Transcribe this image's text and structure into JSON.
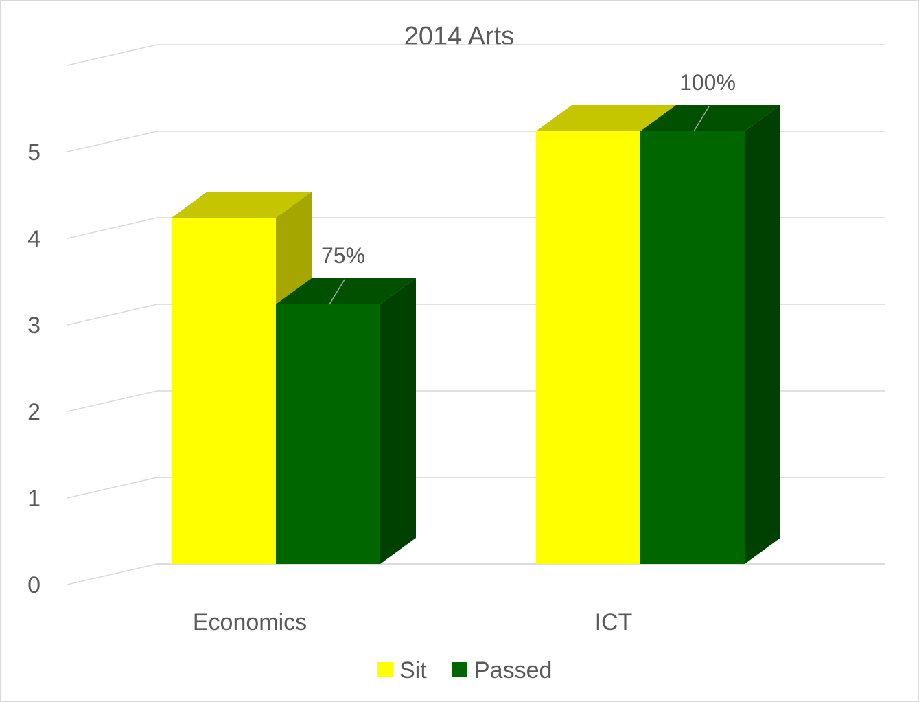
{
  "chart_data": {
    "type": "bar",
    "title": "2014 Arts",
    "categories": [
      "Economics",
      "ICT"
    ],
    "series": [
      {
        "name": "Sit",
        "values": [
          4,
          5
        ],
        "color": "#ffff00",
        "top_color": "#c6c600",
        "side_color": "#a6a600"
      },
      {
        "name": "Passed",
        "values": [
          3,
          5
        ],
        "color": "#006600",
        "top_color": "#005000",
        "side_color": "#004000",
        "labels": [
          "75%",
          "100%"
        ]
      }
    ],
    "yticks": [
      "0",
      "1",
      "2",
      "3",
      "4",
      "5"
    ],
    "ylim": [
      0,
      5.5
    ],
    "grid": true,
    "legend": "bottom",
    "bar_style": "3d-column"
  }
}
